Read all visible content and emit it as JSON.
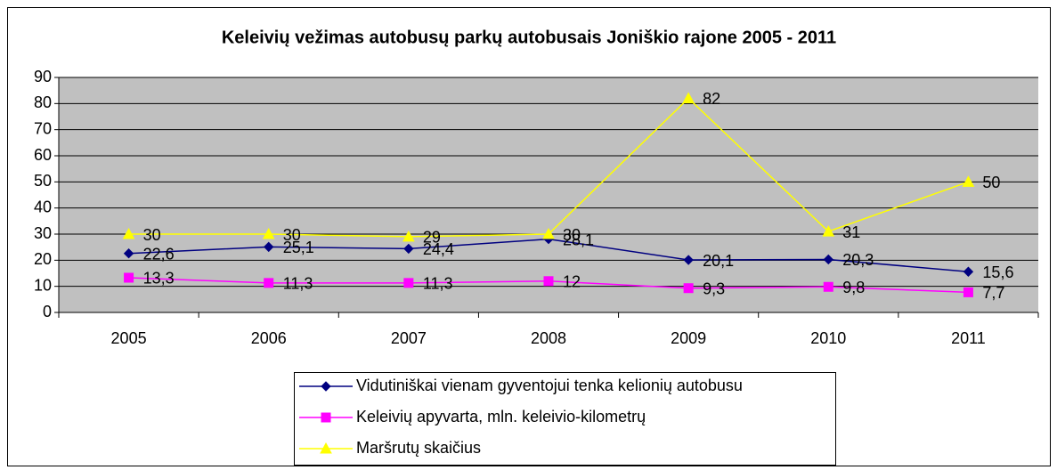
{
  "chart_data": {
    "type": "line",
    "title": "Keleivių vežimas autobusų parkų autobusais Joniškio rajone 2005 - 2011",
    "categories": [
      "2005",
      "2006",
      "2007",
      "2008",
      "2009",
      "2010",
      "2011"
    ],
    "series": [
      {
        "name": "Vidutiniškai vienam gyventojui tenka kelionių autobusu",
        "color": "#000080",
        "marker": "diamond",
        "values": [
          22.6,
          25.1,
          24.4,
          28.1,
          20.1,
          20.3,
          15.6
        ],
        "value_labels": [
          "22,6",
          "25,1",
          "24,4",
          "28,1",
          "20,1",
          "20,3",
          "15,6"
        ]
      },
      {
        "name": "Keleivių apyvarta, mln. keleivio-kilometrų",
        "color": "#FF00FF",
        "marker": "square",
        "values": [
          13.3,
          11.3,
          11.3,
          12,
          9.3,
          9.8,
          7.7
        ],
        "value_labels": [
          "13,3",
          "11,3",
          "11,3",
          "12",
          "9,3",
          "9,8",
          "7,7"
        ]
      },
      {
        "name": "Maršrutų skaičius",
        "color": "#FFFF00",
        "marker": "triangle",
        "values": [
          30,
          30,
          29,
          30,
          82,
          31,
          50
        ]
      }
    ],
    "ylim": [
      0,
      90
    ],
    "yticks": [
      0,
      10,
      20,
      30,
      40,
      50,
      60,
      70,
      80,
      90
    ],
    "grid": true,
    "legend": "bottom"
  }
}
